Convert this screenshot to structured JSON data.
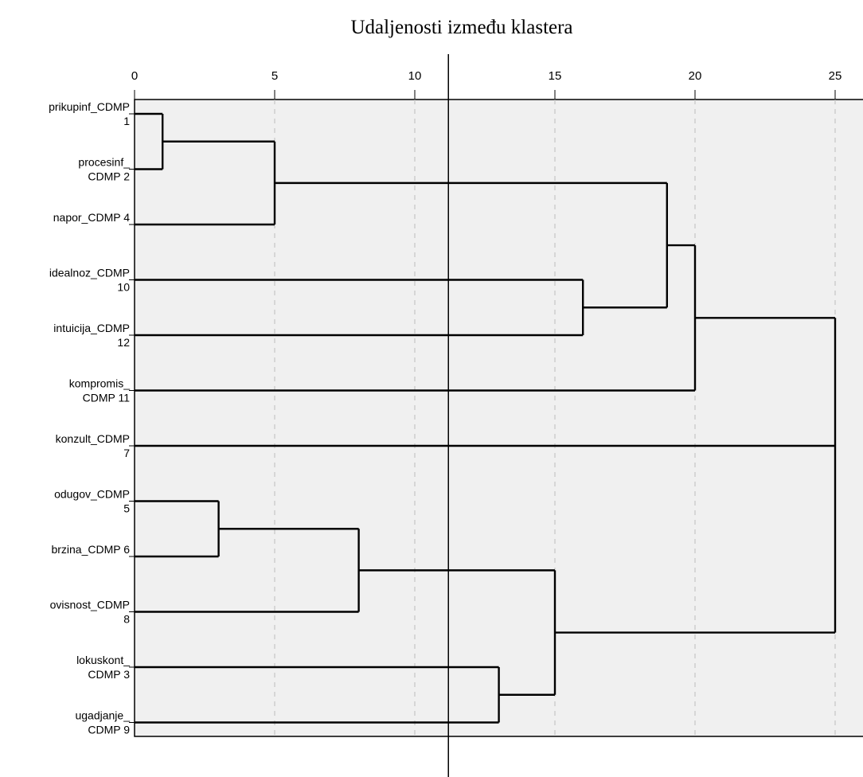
{
  "chart_data": {
    "type": "dendrogram",
    "title": "Udaljenosti između klastera",
    "x_ticks": [
      0,
      5,
      10,
      15,
      20,
      25
    ],
    "x_range": [
      0,
      25
    ],
    "grid": "vertical-dashed",
    "cut_line": 11.2,
    "leaves": [
      {
        "line1": "prikupinf_CDMP",
        "line2": "1"
      },
      {
        "line1": "procesinf_",
        "line2": "CDMP 2"
      },
      {
        "line1": "napor_CDMP 4",
        "line2": ""
      },
      {
        "line1": "idealnoz_CDMP",
        "line2": "10"
      },
      {
        "line1": "intuicija_CDMP",
        "line2": "12"
      },
      {
        "line1": "kompromis_",
        "line2": "CDMP 11"
      },
      {
        "line1": "konzult_CDMP",
        "line2": "7"
      },
      {
        "line1": "odugov_CDMP",
        "line2": "5"
      },
      {
        "line1": "brzina_CDMP 6",
        "line2": ""
      },
      {
        "line1": "ovisnost_CDMP",
        "line2": "8"
      },
      {
        "line1": "lokuskont_",
        "line2": "CDMP 3"
      },
      {
        "line1": "ugadjanje_",
        "line2": "CDMP 9"
      }
    ],
    "merges": [
      {
        "id": "m1",
        "a": 0,
        "b": 1,
        "height": 1
      },
      {
        "id": "m2",
        "a": "m1",
        "b": 2,
        "height": 5
      },
      {
        "id": "m3",
        "a": 3,
        "b": 4,
        "height": 16
      },
      {
        "id": "m4",
        "a": "m2",
        "b": "m3",
        "height": 19
      },
      {
        "id": "m5",
        "a": "m4",
        "b": 5,
        "height": 20
      },
      {
        "id": "m6",
        "a": 7,
        "b": 8,
        "height": 3
      },
      {
        "id": "m7",
        "a": "m6",
        "b": 9,
        "height": 8
      },
      {
        "id": "m8",
        "a": 10,
        "b": 11,
        "height": 13
      },
      {
        "id": "m9",
        "a": "m7",
        "b": "m8",
        "height": 15
      },
      {
        "id": "m10",
        "a": "m5",
        "b": 6,
        "b2": "m9",
        "height": 25
      }
    ]
  }
}
